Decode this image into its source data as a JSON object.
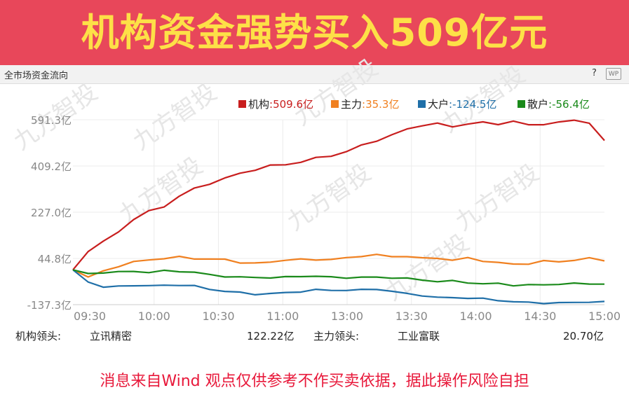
{
  "banner": {
    "title": "机构资金强势买入509亿元",
    "bg_color": "#e8475a",
    "text_color": "#fde047"
  },
  "panel": {
    "title": "全市场资金流向",
    "help": "?",
    "wp_icon": "wp-icon"
  },
  "watermark": "九方智投",
  "chart_data": {
    "type": "line",
    "title": "",
    "xlabel": "",
    "ylabel": "",
    "x_ticks": [
      "09:30",
      "10:00",
      "10:30",
      "11:00",
      "13:00",
      "13:30",
      "14:00",
      "14:30",
      "15:00"
    ],
    "y_ticks": [
      591.3,
      409.2,
      227.0,
      44.8,
      -137.3
    ],
    "y_tick_labels": [
      "591.3亿",
      "409.2亿",
      "227.0亿",
      "44.8亿",
      "-137.3亿"
    ],
    "ylim": [
      -137.3,
      591.3
    ],
    "grid": true,
    "legend_position": "top-right",
    "series": [
      {
        "name": "机构",
        "label": ":509.6亿",
        "color": "#c81e1e",
        "values": [
          0,
          75,
          110,
          150,
          200,
          230,
          250,
          290,
          320,
          340,
          360,
          380,
          395,
          410,
          415,
          425,
          440,
          450,
          465,
          490,
          510,
          530,
          555,
          570,
          575,
          565,
          575,
          580,
          575,
          585,
          570,
          575,
          580,
          590,
          580,
          509.6
        ]
      },
      {
        "name": "主力",
        "label": ":35.3亿",
        "color": "#f08020",
        "values": [
          0,
          -30,
          -5,
          15,
          30,
          40,
          45,
          50,
          45,
          42,
          40,
          30,
          25,
          30,
          40,
          40,
          40,
          42,
          45,
          55,
          60,
          50,
          55,
          45,
          45,
          40,
          45,
          35,
          30,
          20,
          25,
          35,
          30,
          40,
          45,
          35.3
        ]
      },
      {
        "name": "大户",
        "label": ":-124.5亿",
        "color": "#1f6fa8",
        "values": [
          0,
          -45,
          -70,
          -65,
          -60,
          -65,
          -60,
          -60,
          -65,
          -75,
          -85,
          -90,
          -95,
          -95,
          -90,
          -85,
          -80,
          -80,
          -80,
          -80,
          -75,
          -85,
          -95,
          -100,
          -110,
          -110,
          -110,
          -115,
          -120,
          -125,
          -130,
          -130,
          -130,
          -130,
          -125,
          -124.5
        ]
      },
      {
        "name": "散户",
        "label": ":-56.4亿",
        "color": "#1a8a1a",
        "values": [
          0,
          -15,
          -10,
          -10,
          -5,
          -10,
          -5,
          -5,
          -10,
          -20,
          -25,
          -30,
          -30,
          -30,
          -30,
          -25,
          -25,
          -30,
          -30,
          -30,
          -30,
          -30,
          -35,
          -40,
          -45,
          -45,
          -50,
          -55,
          -55,
          -60,
          -60,
          -60,
          -55,
          -55,
          -55,
          -56.4
        ]
      }
    ]
  },
  "leaders": {
    "inst_label": "机构领头:",
    "inst_stock": "立讯精密",
    "inst_value": "122.22亿",
    "main_label": "主力领头:",
    "main_stock": "工业富联",
    "main_value": "20.70亿"
  },
  "footer": {
    "text": "消息来自Wind 观点仅供参考不作买卖依据，据此操作风险自担",
    "color": "#e8183a"
  }
}
